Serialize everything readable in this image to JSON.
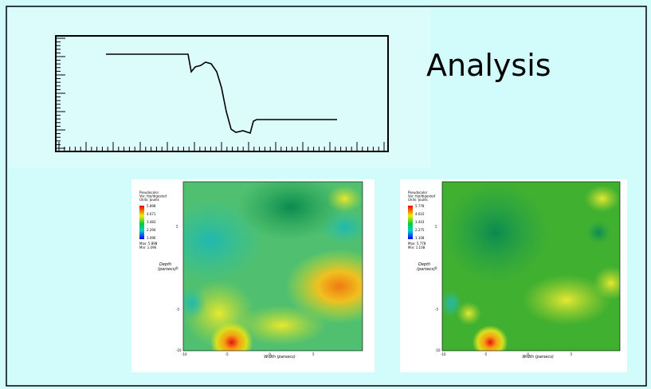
{
  "slide": {
    "title": "Analysis",
    "plots": [
      {
        "legend": [
          "Pseudocolor",
          "Var: foo/digested",
          "Units: Joules"
        ],
        "colorbar_ticks": [
          "5.898",
          "4.671",
          "3.483",
          "2.294",
          "1.096"
        ],
        "max": "Max: 5.898",
        "min": "Min: 1.096",
        "y_label": "Depth\n(parsecs)",
        "x_label": "Width (parsecs)",
        "y_ticks": [
          "5",
          "0",
          "-5",
          "-10"
        ],
        "x_ticks": [
          "-10",
          "-5",
          "0",
          "5"
        ]
      },
      {
        "legend": [
          "Pseudocolor",
          "Var: foo/digested",
          "Units: Joules"
        ],
        "colorbar_ticks": [
          "5.778",
          "4.610",
          "3.443",
          "2.275",
          "1.108"
        ],
        "max": "Max: 5.778",
        "min": "Min: 1.108",
        "y_label": "Depth\n(parsecs)",
        "x_label": "Width (parsecs)",
        "y_ticks": [
          "5",
          "0",
          "-5",
          "-10"
        ],
        "x_ticks": [
          "-10",
          "-5",
          "0",
          "5"
        ]
      }
    ]
  }
}
